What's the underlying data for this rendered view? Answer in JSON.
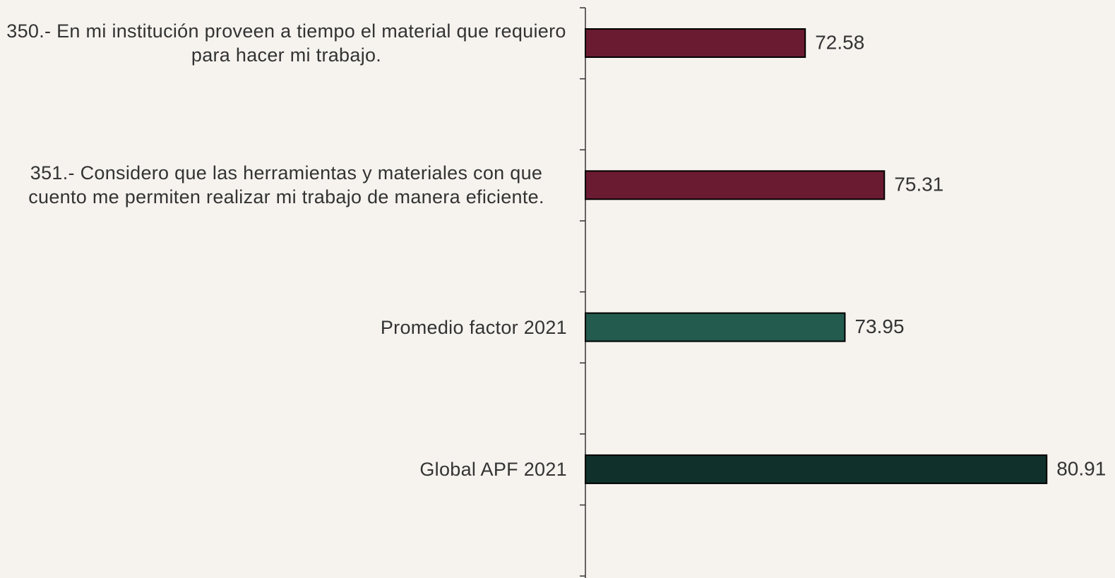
{
  "chart_data": {
    "type": "bar",
    "orientation": "horizontal",
    "categories": [
      "350.- En mi institución proveen a tiempo el material que requiero para hacer mi trabajo.",
      "351.- Considero que las herramientas y materiales con que cuento me permiten realizar mi trabajo de manera eficiente.",
      "Promedio factor 2021",
      "Global APF 2021"
    ],
    "values": [
      72.58,
      75.31,
      73.95,
      80.91
    ],
    "colors": [
      "#6a1b31",
      "#6a1b31",
      "#235b4e",
      "#10312b"
    ],
    "xlim": [
      65,
      82
    ]
  }
}
